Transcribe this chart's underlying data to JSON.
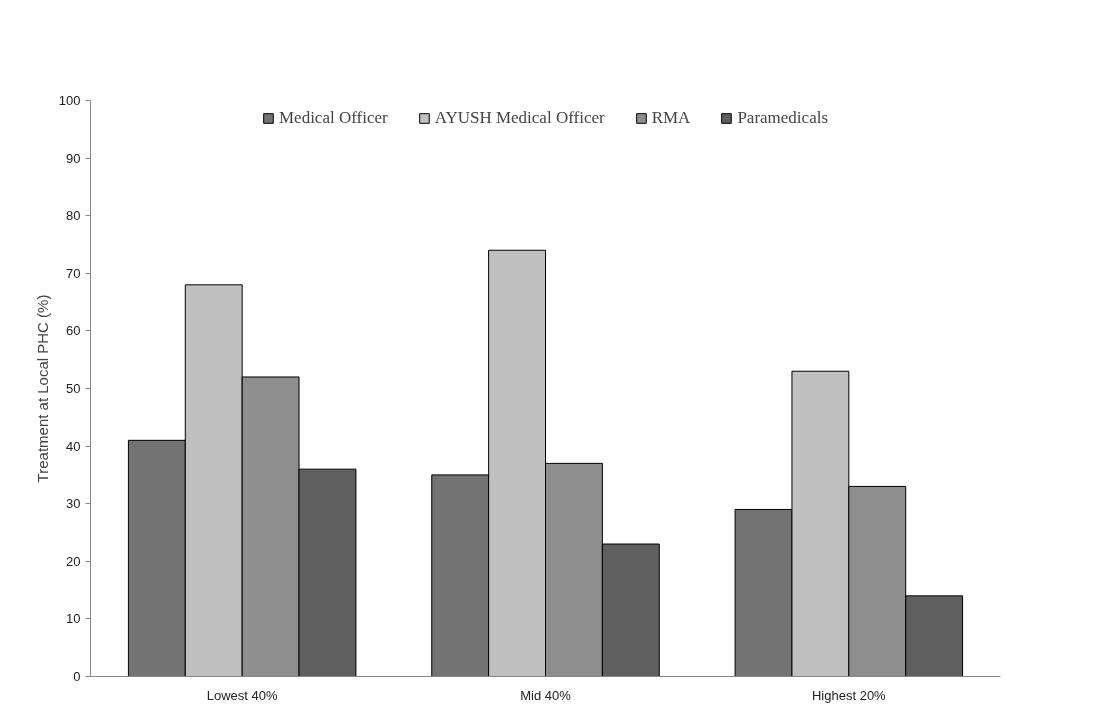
{
  "chart_data": {
    "type": "bar",
    "ylabel": "Treatment at Local PHC (%)",
    "categories": [
      "Lowest 40%",
      "Mid 40%",
      "Highest 20%"
    ],
    "series": [
      {
        "name": "Medical Officer",
        "color": "#737373",
        "values": [
          41,
          35,
          29
        ]
      },
      {
        "name": "AYUSH Medical Officer",
        "color": "#c0c0c0",
        "values": [
          68,
          74,
          53
        ]
      },
      {
        "name": "RMA",
        "color": "#8e8e8e",
        "values": [
          52,
          37,
          33
        ]
      },
      {
        "name": "Paramedicals",
        "color": "#5f5f5f",
        "values": [
          36,
          23,
          14
        ]
      }
    ],
    "ylim": [
      0,
      100
    ],
    "yticks": [
      0,
      10,
      20,
      30,
      40,
      50,
      60,
      70,
      80,
      90,
      100
    ],
    "grid": false,
    "legend": "top"
  }
}
